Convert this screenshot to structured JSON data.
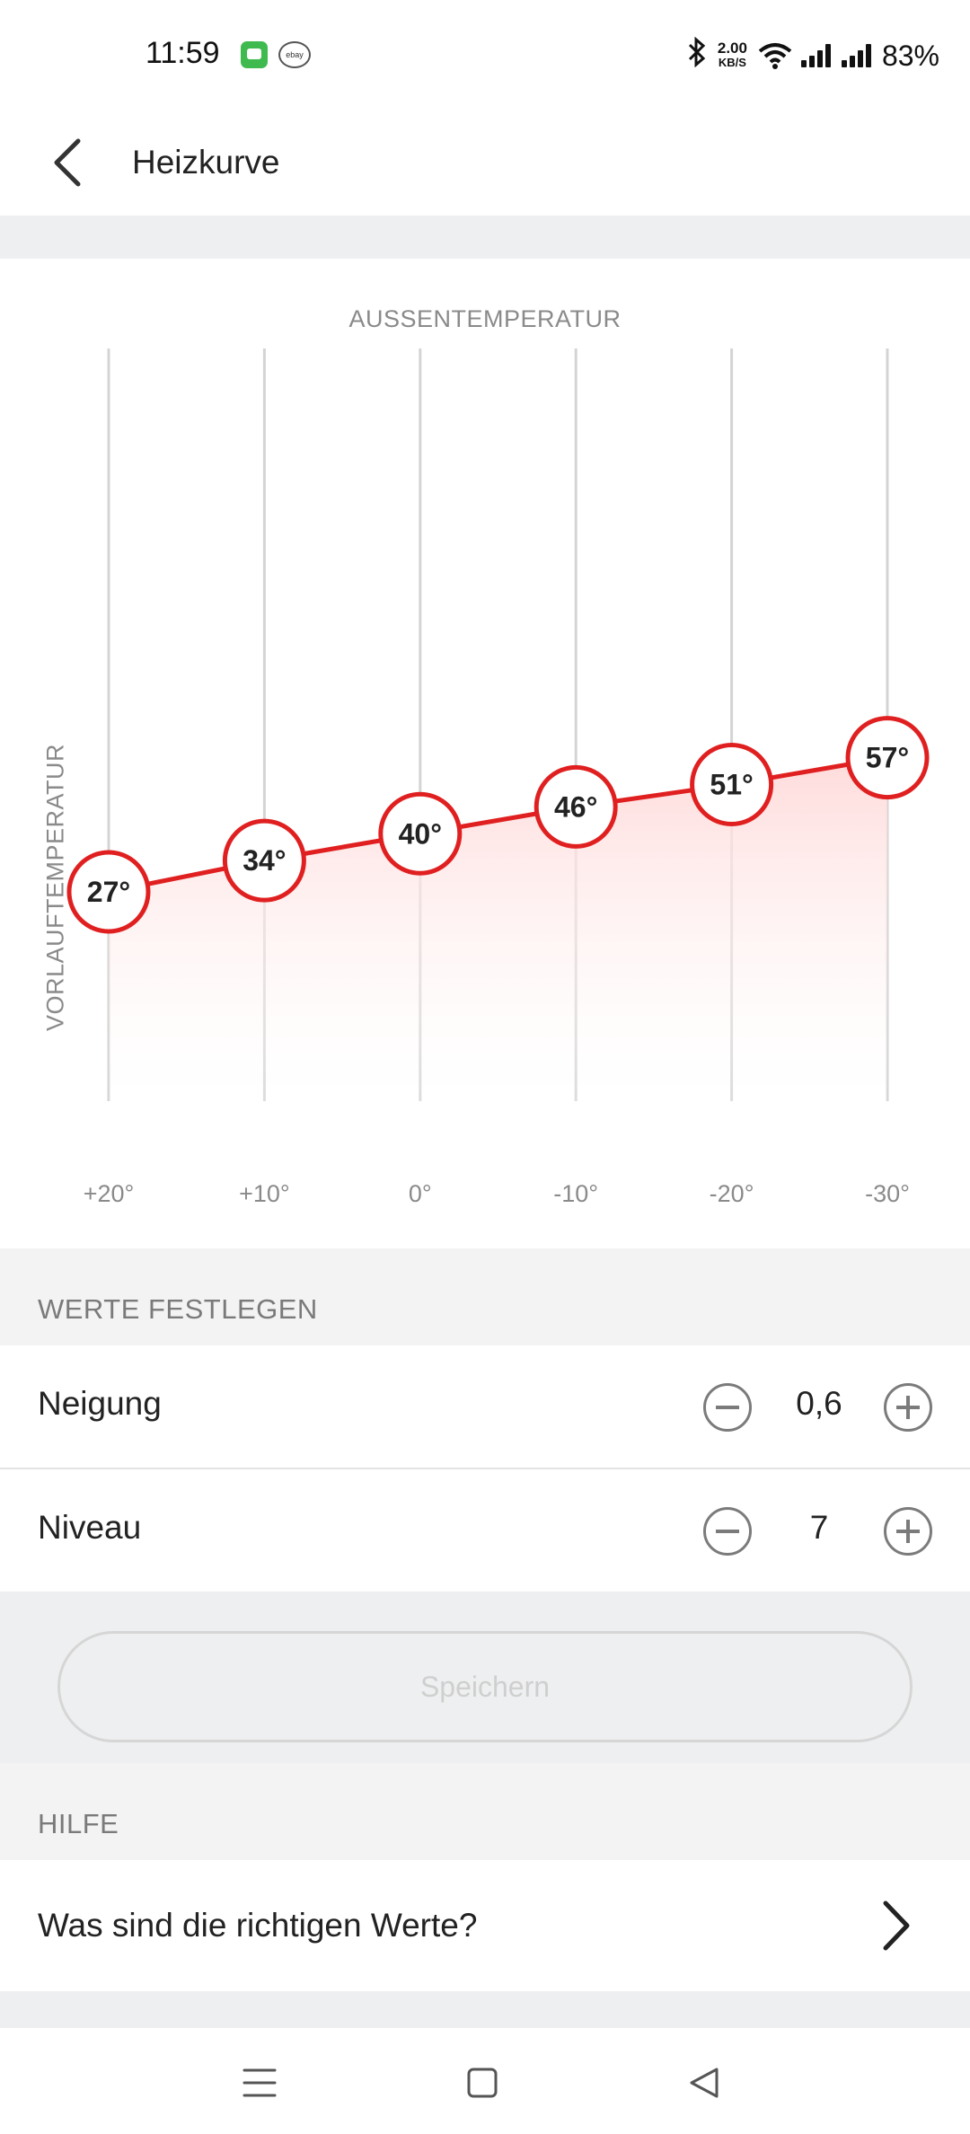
{
  "status_bar": {
    "time": "11:59",
    "net_speed_value": "2.00",
    "net_speed_unit": "KB/S",
    "battery": "83%",
    "app_icons": [
      "chat-app-icon",
      "ebay-kleinanzeigen-icon"
    ],
    "ebay_text": "ebay"
  },
  "header": {
    "title": "Heizkurve",
    "back_icon": "chevron-left-icon"
  },
  "chart": {
    "x_axis_title": "AUSSENTEMPERATUR",
    "y_axis_title": "VORLAUFTEMPERATUR"
  },
  "chart_data": {
    "type": "line",
    "xlabel": "AUSSENTEMPERATUR",
    "ylabel": "VORLAUFTEMPERATUR",
    "categories": [
      "+20°",
      "+10°",
      "0°",
      "-10°",
      "-20°",
      "-30°"
    ],
    "x": [
      20,
      10,
      0,
      -10,
      -20,
      -30
    ],
    "values": [
      27,
      34,
      40,
      46,
      51,
      57
    ],
    "point_labels": [
      "27°",
      "34°",
      "40°",
      "46°",
      "51°",
      "57°"
    ],
    "grid": "vertical",
    "fill": "area-gradient",
    "colors": {
      "line": "#e02020",
      "fill": "#ffe3e3"
    }
  },
  "settings": {
    "section_title": "WERTE FESTLEGEN",
    "neigung": {
      "label": "Neigung",
      "value": "0,6"
    },
    "niveau": {
      "label": "Niveau",
      "value": "7"
    }
  },
  "save_button": {
    "label": "Speichern",
    "state": "disabled"
  },
  "help": {
    "section_title": "HILFE",
    "item_label": "Was sind die richtigen Werte?"
  },
  "nav_bar": {
    "icons": [
      "menu-icon",
      "home-icon",
      "back-triangle-icon"
    ]
  }
}
